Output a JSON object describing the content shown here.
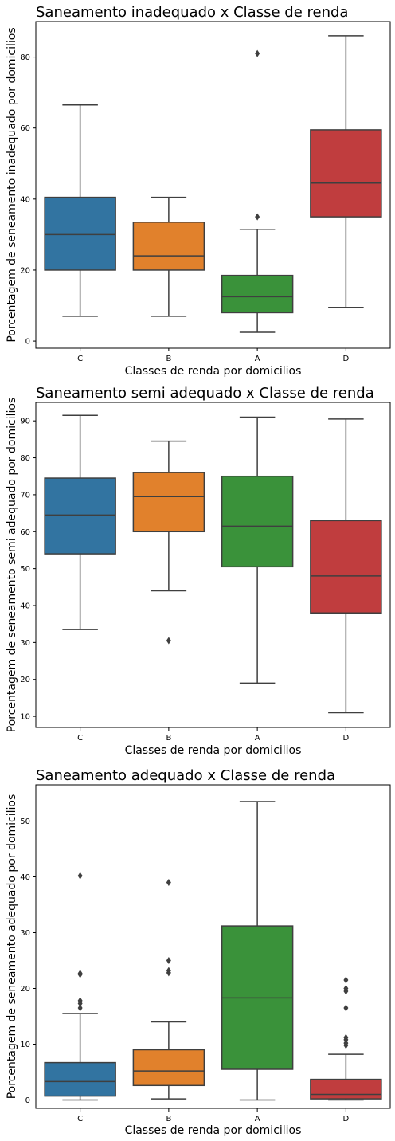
{
  "chart_data": [
    {
      "type": "box",
      "title": "Saneamento inadequado x Classe de renda",
      "xlabel": "Classes de renda por domicilios",
      "ylabel": "Porcentagem de seneamento inadequado por domicilios",
      "ylim": [
        -2,
        90
      ],
      "yticks": [
        0,
        20,
        40,
        60,
        80
      ],
      "categories": [
        "C",
        "B",
        "A",
        "D"
      ],
      "colors": [
        "#3274a1",
        "#e1812c",
        "#3a923a",
        "#c03d3e"
      ],
      "boxes": [
        {
          "category": "C",
          "whislo": 7,
          "q1": 20,
          "med": 30,
          "q3": 40.5,
          "whishi": 66.5,
          "fliers": []
        },
        {
          "category": "B",
          "whislo": 7,
          "q1": 20,
          "med": 24,
          "q3": 33.5,
          "whishi": 40.5,
          "fliers": []
        },
        {
          "category": "A",
          "whislo": 2.5,
          "q1": 8,
          "med": 12.5,
          "q3": 18.5,
          "whishi": 31.5,
          "fliers": [
            35,
            81
          ]
        },
        {
          "category": "D",
          "whislo": 9.5,
          "q1": 35,
          "med": 44.5,
          "q3": 59.5,
          "whishi": 86,
          "fliers": []
        }
      ]
    },
    {
      "type": "box",
      "title": "Saneamento semi adequado x Classe de renda",
      "xlabel": "Classes de renda por domicilios",
      "ylabel": "Porcentagem de seneamento semi adequado por domicilios",
      "ylim": [
        7,
        95
      ],
      "yticks": [
        10,
        20,
        30,
        40,
        50,
        60,
        70,
        80,
        90
      ],
      "categories": [
        "C",
        "B",
        "A",
        "D"
      ],
      "colors": [
        "#3274a1",
        "#e1812c",
        "#3a923a",
        "#c03d3e"
      ],
      "boxes": [
        {
          "category": "C",
          "whislo": 33.5,
          "q1": 54,
          "med": 64.5,
          "q3": 74.5,
          "whishi": 91.5,
          "fliers": []
        },
        {
          "category": "B",
          "whislo": 44,
          "q1": 60,
          "med": 69.5,
          "q3": 76,
          "whishi": 84.5,
          "fliers": [
            30.5
          ]
        },
        {
          "category": "A",
          "whislo": 19,
          "q1": 50.5,
          "med": 61.5,
          "q3": 75,
          "whishi": 91,
          "fliers": []
        },
        {
          "category": "D",
          "whislo": 11,
          "q1": 38,
          "med": 48,
          "q3": 63,
          "whishi": 90.5,
          "fliers": []
        }
      ]
    },
    {
      "type": "box",
      "title": "Saneamento adequado x Classe de renda",
      "xlabel": "Classes de renda por domicilios",
      "ylabel": "Porcentagem de seneamento adequado por domicilios",
      "ylim": [
        -1.5,
        56.5
      ],
      "yticks": [
        0,
        10,
        20,
        30,
        40,
        50
      ],
      "categories": [
        "C",
        "B",
        "A",
        "D"
      ],
      "colors": [
        "#3274a1",
        "#e1812c",
        "#3a923a",
        "#c03d3e"
      ],
      "boxes": [
        {
          "category": "C",
          "whislo": 0,
          "q1": 0.7,
          "med": 3.3,
          "q3": 6.7,
          "whishi": 15.5,
          "fliers": [
            16.5,
            17.3,
            17.8,
            22.5,
            22.7,
            40.2
          ]
        },
        {
          "category": "B",
          "whislo": 0.2,
          "q1": 2.6,
          "med": 5.2,
          "q3": 9,
          "whishi": 14,
          "fliers": [
            22.8,
            23.2,
            25,
            39
          ]
        },
        {
          "category": "A",
          "whislo": 0,
          "q1": 5.5,
          "med": 18.3,
          "q3": 31.2,
          "whishi": 53.5,
          "fliers": []
        },
        {
          "category": "D",
          "whislo": 0,
          "q1": 0.2,
          "med": 1,
          "q3": 3.7,
          "whishi": 8.2,
          "fliers": [
            9.8,
            10.2,
            10.8,
            11.2,
            16.5,
            19.5,
            20,
            21.5
          ]
        }
      ]
    }
  ]
}
